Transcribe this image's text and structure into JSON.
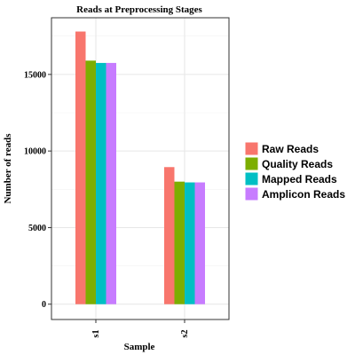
{
  "chart_data": {
    "type": "bar",
    "title": "Reads at Preprocessing Stages",
    "xlabel": "Sample",
    "ylabel": "Number of reads",
    "categories": [
      "s1",
      "s2"
    ],
    "series": [
      {
        "name": "Raw Reads",
        "color": "#F8766D",
        "values": [
          17800,
          8950
        ]
      },
      {
        "name": "Quality Reads",
        "color": "#7CAE00",
        "values": [
          15900,
          8000
        ]
      },
      {
        "name": "Mapped Reads",
        "color": "#00BFC4",
        "values": [
          15750,
          7950
        ]
      },
      {
        "name": "Amplicon Reads",
        "color": "#C77CFF",
        "values": [
          15750,
          7950
        ]
      }
    ],
    "yticks": [
      0,
      5000,
      10000,
      15000
    ],
    "ylim": [
      -1000,
      18700
    ],
    "grid": true,
    "legend_position": "right"
  }
}
